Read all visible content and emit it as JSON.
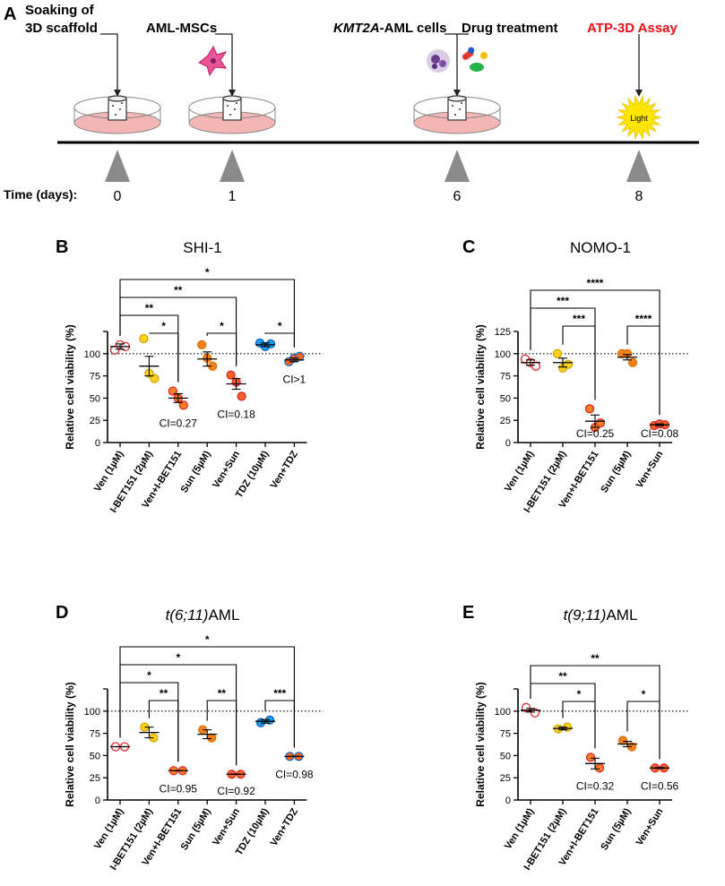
{
  "panel_a": {
    "letter": "A",
    "steps": [
      {
        "label_lines": [
          "Soaking of",
          "3D scaffold"
        ],
        "day": "0"
      },
      {
        "label_lines": [
          "AML-MSCs"
        ],
        "day": "1"
      },
      {
        "label_lines": [
          "KMT2A-AML cells"
        ],
        "label_italic": "KMT2A",
        "label_rest": "-AML cells",
        "day": "6"
      },
      {
        "label_lines": [
          "Drug treatment"
        ],
        "day": ""
      },
      {
        "label_lines": [
          "ATP-3D Assay"
        ],
        "day": "8"
      }
    ],
    "time_label": "Time (days):",
    "light_label": "Light",
    "colors": {
      "assay": "#e8101a",
      "dish": "#f4b6b4",
      "sun": "#ffe600"
    }
  },
  "chart_data": [
    {
      "letter": "B",
      "type": "scatter",
      "title": "SHI-1",
      "title_italic": false,
      "ylabel": "Relative cell viability (%)",
      "ylim": [
        0,
        125
      ],
      "yticks": [
        0,
        25,
        50,
        75,
        100
      ],
      "reference_line": 100,
      "categories": [
        "Ven (1µM)",
        "I-BET151 (2µM)",
        "Ven+I-BET151",
        "Sun (5µM)",
        "Ven+Sun",
        "TDZ (10µM)",
        "Ven+TDZ"
      ],
      "points": [
        [
          104,
          110,
          108
        ],
        [
          117,
          78,
          72
        ],
        [
          58,
          50,
          42
        ],
        [
          110,
          95,
          86
        ],
        [
          76,
          68,
          52
        ],
        [
          112,
          108,
          111
        ],
        [
          91,
          95,
          97
        ]
      ],
      "means": [
        108,
        86,
        50,
        94,
        66,
        110,
        93
      ],
      "sems": [
        3,
        11,
        5,
        8,
        6,
        2,
        2
      ],
      "marker_colors": [
        "#ffffff",
        "#ffd21e",
        "#f58220",
        "#f58220",
        "#f26522",
        "#1e9fe8",
        "#f26522"
      ],
      "marker_edges": [
        "#e2272c",
        "#d4a800",
        "#e2272c",
        "#e07000",
        "#e2272c",
        "#1565c0",
        "#1565c0"
      ],
      "annotations": [
        {
          "category": 2,
          "text": "CI=0.27"
        },
        {
          "category": 4,
          "text": "CI=0.18"
        },
        {
          "category": 6,
          "text": "CI>1"
        }
      ],
      "brackets": [
        {
          "from": 0,
          "to": 6,
          "label": "*"
        },
        {
          "from": 0,
          "to": 4,
          "label": "**"
        },
        {
          "from": 0,
          "to": 2,
          "label": "**"
        },
        {
          "from": 1,
          "to": 2,
          "label": "*"
        },
        {
          "from": 3,
          "to": 4,
          "label": "*"
        },
        {
          "from": 5,
          "to": 6,
          "label": "*"
        }
      ]
    },
    {
      "letter": "C",
      "type": "scatter",
      "title": "NOMO-1",
      "title_italic": false,
      "ylabel": "Relative cell viability (%)",
      "ylim": [
        0,
        125
      ],
      "yticks": [
        0,
        25,
        50,
        75,
        100,
        125
      ],
      "reference_line": 100,
      "categories": [
        "Ven (1µM)",
        "I-BET151 (2µM)",
        "Ven+I-BET151",
        "Sun (5µM)",
        "Ven+Sun"
      ],
      "points": [
        [
          94,
          90,
          86
        ],
        [
          100,
          84,
          88
        ],
        [
          38,
          17,
          22
        ],
        [
          100,
          100,
          90
        ],
        [
          19,
          21,
          20
        ]
      ],
      "means": [
        90,
        90,
        24,
        96,
        20
      ],
      "sems": [
        3,
        5,
        7,
        3,
        1
      ],
      "marker_colors": [
        "#ffffff",
        "#ffd21e",
        "#f58220",
        "#f58220",
        "#f26522"
      ],
      "marker_edges": [
        "#e2272c",
        "#d4a800",
        "#e2272c",
        "#e07000",
        "#e2272c"
      ],
      "annotations": [
        {
          "category": 2,
          "text": "CI=0.25"
        },
        {
          "category": 4,
          "text": "CI=0.08"
        }
      ],
      "brackets": [
        {
          "from": 0,
          "to": 4,
          "label": "****"
        },
        {
          "from": 0,
          "to": 2,
          "label": "***"
        },
        {
          "from": 1,
          "to": 2,
          "label": "***"
        },
        {
          "from": 3,
          "to": 4,
          "label": "****"
        }
      ]
    },
    {
      "letter": "D",
      "type": "scatter",
      "title": "t(6;11)AML",
      "title_italic": true,
      "title_italic_part": "t(6;11)",
      "title_rest": "AML",
      "ylabel": "Relative cell viability (%)",
      "ylim": [
        0,
        125
      ],
      "yticks": [
        0,
        25,
        50,
        75,
        100
      ],
      "reference_line": 100,
      "categories": [
        "Ven (1µM)",
        "I-BET151 (2µM)",
        "Ven+I-BET151",
        "Sun (5µM)",
        "Ven+Sun",
        "TDZ (10µM)",
        "Ven+TDZ"
      ],
      "points": [
        [
          60,
          60
        ],
        [
          82,
          70
        ],
        [
          33,
          33
        ],
        [
          79,
          70
        ],
        [
          29,
          29
        ],
        [
          87,
          90
        ],
        [
          49,
          49
        ]
      ],
      "means": [
        60,
        76,
        33,
        74,
        29,
        88.5,
        49
      ],
      "sems": [
        0,
        6,
        0,
        5,
        0,
        2,
        0
      ],
      "marker_colors": [
        "#ffffff",
        "#ffd21e",
        "#f58220",
        "#f58220",
        "#f26522",
        "#1e9fe8",
        "#f26522"
      ],
      "marker_edges": [
        "#e2272c",
        "#d4a800",
        "#e2272c",
        "#e07000",
        "#e2272c",
        "#1565c0",
        "#1565c0"
      ],
      "annotations": [
        {
          "category": 2,
          "text": "CI=0.95"
        },
        {
          "category": 4,
          "text": "CI=0.92"
        },
        {
          "category": 6,
          "text": "CI=0.98"
        }
      ],
      "brackets": [
        {
          "from": 0,
          "to": 6,
          "label": "*"
        },
        {
          "from": 0,
          "to": 4,
          "label": "*"
        },
        {
          "from": 0,
          "to": 2,
          "label": "*"
        },
        {
          "from": 1,
          "to": 2,
          "label": "**"
        },
        {
          "from": 3,
          "to": 4,
          "label": "**"
        },
        {
          "from": 5,
          "to": 6,
          "label": "***"
        }
      ]
    },
    {
      "letter": "E",
      "type": "scatter",
      "title": "t(9;11)AML",
      "title_italic": true,
      "title_italic_part": "t(9;11)",
      "title_rest": "AML",
      "ylabel": "Relative cell viability (%)",
      "ylim": [
        0,
        125
      ],
      "yticks": [
        0,
        25,
        50,
        75,
        100
      ],
      "reference_line": 100,
      "categories": [
        "Ven (1µM)",
        "I-BET151 (2µM)",
        "Ven+I-BET151",
        "Sun (5µM)",
        "Ven+Sun"
      ],
      "points": [
        [
          104,
          98
        ],
        [
          80,
          82
        ],
        [
          48,
          36
        ],
        [
          67,
          60
        ],
        [
          36,
          36
        ]
      ],
      "means": [
        101,
        80.5,
        41,
        63,
        36
      ],
      "sems": [
        2,
        1.5,
        6,
        3,
        0.5
      ],
      "marker_colors": [
        "#ffffff",
        "#ffd21e",
        "#f58220",
        "#f58220",
        "#f26522"
      ],
      "marker_edges": [
        "#e2272c",
        "#d4a800",
        "#e2272c",
        "#e07000",
        "#e2272c"
      ],
      "annotations": [
        {
          "category": 2,
          "text": "CI=0.32"
        },
        {
          "category": 4,
          "text": "CI=0.56"
        }
      ],
      "brackets": [
        {
          "from": 0,
          "to": 4,
          "label": "**"
        },
        {
          "from": 0,
          "to": 2,
          "label": "**"
        },
        {
          "from": 1,
          "to": 2,
          "label": "*"
        },
        {
          "from": 3,
          "to": 4,
          "label": "*"
        }
      ]
    }
  ]
}
